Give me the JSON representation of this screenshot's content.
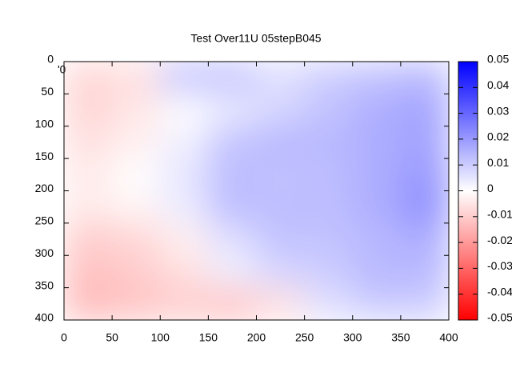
{
  "chart_data": {
    "type": "heatmap",
    "title": "Test Over11U 05stepB045",
    "key_label": "'0",
    "x": [
      25,
      75,
      125,
      175,
      225,
      275,
      325,
      375
    ],
    "y": [
      25,
      75,
      125,
      175,
      225,
      275,
      325,
      375
    ],
    "z": [
      [
        -0.008,
        -0.006,
        0.012,
        0.012,
        0.006,
        0.01,
        0.012,
        0.014
      ],
      [
        -0.008,
        -0.005,
        0.0,
        0.004,
        0.008,
        0.012,
        0.016,
        0.018
      ],
      [
        -0.006,
        -0.003,
        0.003,
        0.012,
        0.014,
        0.014,
        0.016,
        0.018
      ],
      [
        -0.004,
        0.0,
        0.005,
        0.013,
        0.012,
        0.013,
        0.016,
        0.02
      ],
      [
        -0.004,
        -0.002,
        0.004,
        0.013,
        0.013,
        0.013,
        0.016,
        0.022
      ],
      [
        -0.01,
        -0.008,
        -0.003,
        0.006,
        0.012,
        0.012,
        0.014,
        0.016
      ],
      [
        -0.012,
        -0.01,
        -0.006,
        0.003,
        0.008,
        0.01,
        0.014,
        0.014
      ],
      [
        -0.014,
        -0.012,
        -0.01,
        -0.012,
        -0.006,
        0.006,
        0.01,
        0.01
      ]
    ],
    "xlim": [
      0,
      400
    ],
    "xticks": [
      0,
      50,
      100,
      150,
      200,
      250,
      300,
      350,
      400
    ],
    "ylim": [
      0,
      400
    ],
    "yticks": [
      0,
      50,
      100,
      150,
      200,
      250,
      300,
      350,
      400
    ],
    "y_reversed": true,
    "zlim": [
      -0.05,
      0.05
    ],
    "zticks": [
      0.05,
      0.04,
      0.03,
      0.02,
      0.01,
      0,
      -0.01,
      -0.02,
      -0.03,
      -0.04,
      -0.05
    ],
    "low_color": "#ff0000",
    "mid_color": "#ffffff",
    "high_color": "#0000ff"
  }
}
